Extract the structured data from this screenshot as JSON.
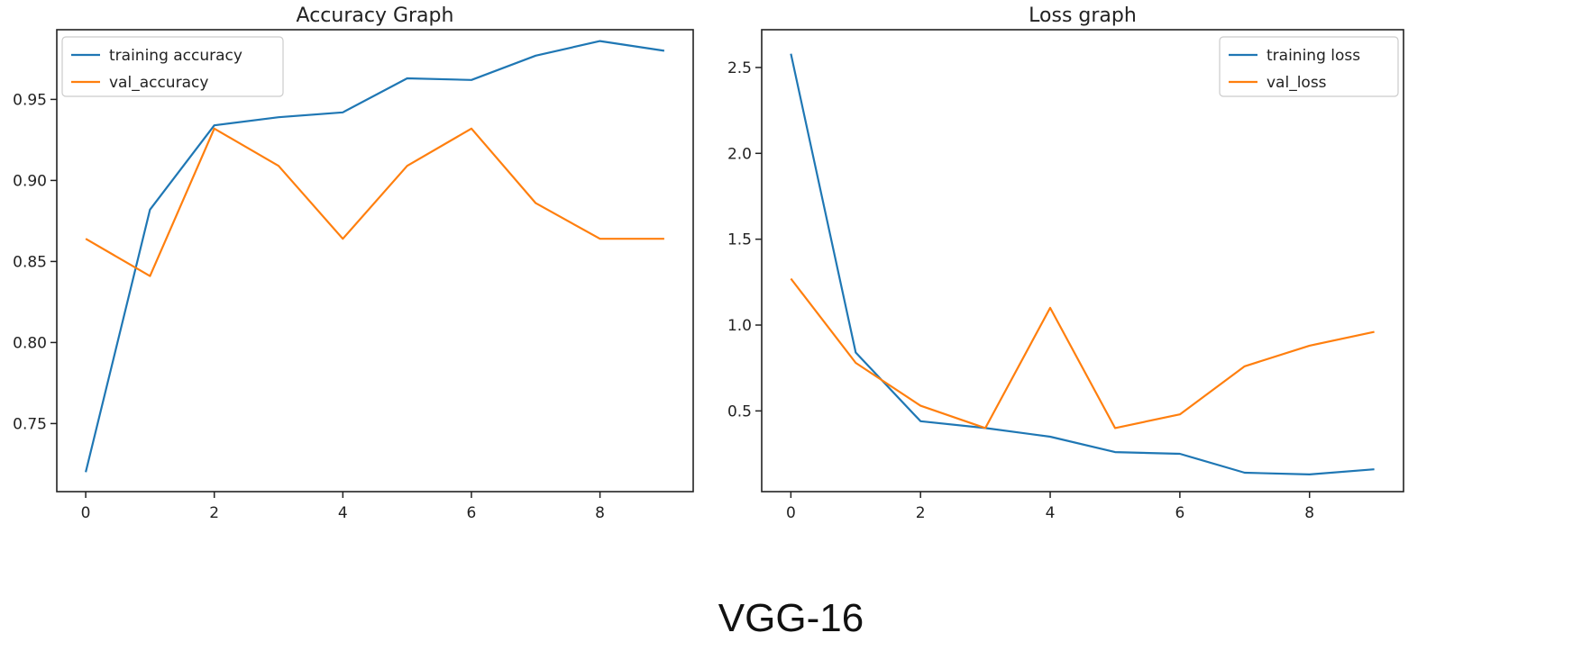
{
  "figure": {
    "caption": "VGG-16"
  },
  "colors": {
    "training": "#1f77b4",
    "validation": "#ff7f0e"
  },
  "chart_data": [
    {
      "type": "line",
      "title": "Accuracy Graph",
      "xlabel": "",
      "ylabel": "",
      "x": [
        0,
        1,
        2,
        3,
        4,
        5,
        6,
        7,
        8,
        9
      ],
      "xticks": [
        0,
        2,
        4,
        6,
        8
      ],
      "xlim": [
        -0.45,
        9.45
      ],
      "yticks": [
        0.75,
        0.8,
        0.85,
        0.9,
        0.95
      ],
      "ytick_labels": [
        "0.75",
        "0.80",
        "0.85",
        "0.90",
        "0.95"
      ],
      "ylim": [
        0.708,
        0.993
      ],
      "grid": false,
      "legend": "top-left",
      "series": [
        {
          "name": "training accuracy",
          "color": "#1f77b4",
          "values": [
            0.72,
            0.882,
            0.934,
            0.939,
            0.942,
            0.963,
            0.962,
            0.977,
            0.986,
            0.98
          ]
        },
        {
          "name": "val_accuracy",
          "color": "#ff7f0e",
          "values": [
            0.864,
            0.841,
            0.932,
            0.909,
            0.864,
            0.909,
            0.932,
            0.886,
            0.864,
            0.864
          ]
        }
      ]
    },
    {
      "type": "line",
      "title": "Loss graph",
      "xlabel": "",
      "ylabel": "",
      "x": [
        0,
        1,
        2,
        3,
        4,
        5,
        6,
        7,
        8,
        9
      ],
      "xticks": [
        0,
        2,
        4,
        6,
        8
      ],
      "xlim": [
        -0.45,
        9.45
      ],
      "yticks": [
        0.5,
        1.0,
        1.5,
        2.0,
        2.5
      ],
      "ytick_labels": [
        "0.5",
        "1.0",
        "1.5",
        "2.0",
        "2.5"
      ],
      "ylim": [
        0.03,
        2.72
      ],
      "grid": false,
      "legend": "top-right",
      "series": [
        {
          "name": "training loss",
          "color": "#1f77b4",
          "values": [
            2.58,
            0.84,
            0.44,
            0.4,
            0.35,
            0.26,
            0.25,
            0.14,
            0.13,
            0.16
          ]
        },
        {
          "name": "val_loss",
          "color": "#ff7f0e",
          "values": [
            1.27,
            0.78,
            0.53,
            0.4,
            1.1,
            0.4,
            0.48,
            0.76,
            0.88,
            0.96
          ]
        }
      ]
    }
  ]
}
